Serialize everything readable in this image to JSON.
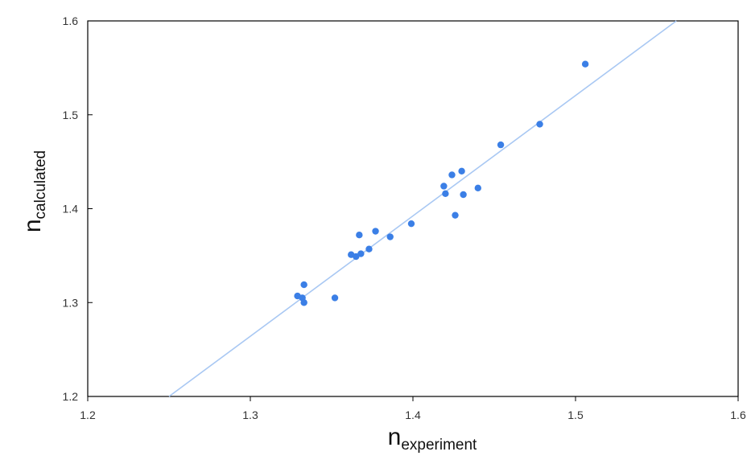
{
  "chart_data": {
    "type": "scatter",
    "title": "",
    "xlabel": {
      "main": "n",
      "sub": "experiment"
    },
    "ylabel": {
      "main": "n",
      "sub": "calculated"
    },
    "xlim": [
      1.2,
      1.6
    ],
    "ylim": [
      1.2,
      1.6
    ],
    "x_ticks": [
      "1.2",
      "1.3",
      "1.4",
      "1.5",
      "1.6"
    ],
    "y_ticks": [
      "1.2",
      "1.3",
      "1.4",
      "1.5",
      "1.6"
    ],
    "grid": false,
    "legend": "none",
    "colors": {
      "points": "#3b7fe6",
      "trendline": "#a9c8f3",
      "axis": "#000000"
    },
    "trendline": {
      "x": [
        1.25,
        1.562
      ],
      "y": [
        1.2,
        1.6
      ]
    },
    "series": [
      {
        "x": [
          1.329,
          1.332,
          1.333,
          1.333,
          1.352,
          1.362,
          1.365,
          1.367,
          1.368,
          1.373,
          1.377,
          1.386,
          1.399,
          1.419,
          1.42,
          1.424,
          1.426,
          1.43,
          1.431,
          1.44,
          1.454,
          1.478,
          1.506
        ],
        "y": [
          1.307,
          1.305,
          1.3,
          1.319,
          1.305,
          1.351,
          1.349,
          1.372,
          1.352,
          1.357,
          1.376,
          1.37,
          1.384,
          1.424,
          1.416,
          1.436,
          1.393,
          1.44,
          1.415,
          1.422,
          1.468,
          1.49,
          1.554
        ]
      }
    ]
  }
}
